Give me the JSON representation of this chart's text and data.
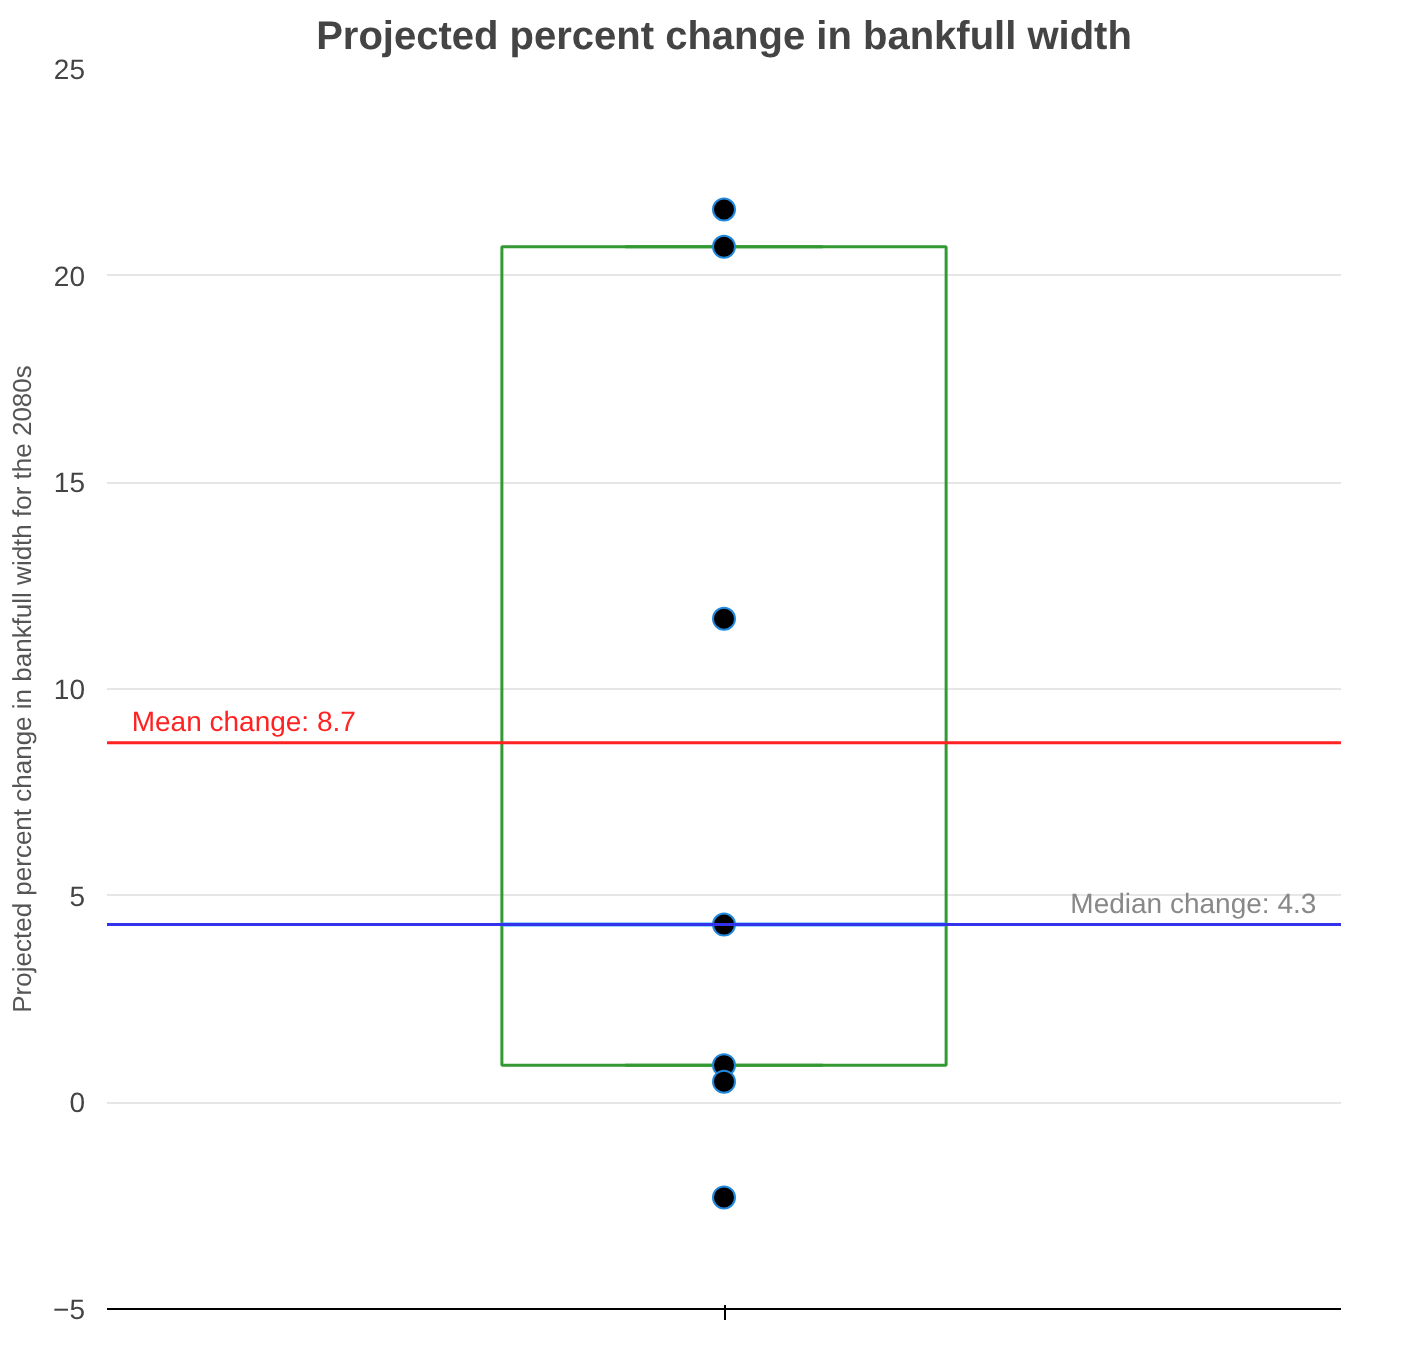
{
  "chart_data": {
    "type": "box",
    "title": "Projected percent change in bankfull width",
    "ylabel": "Projected percent change in bankfull width for the 2080s",
    "categories": [
      null
    ],
    "ylim": [
      -5,
      25
    ],
    "yticks": [
      -5,
      0,
      5,
      10,
      15,
      20,
      25
    ],
    "grid": "y",
    "marker": "circle",
    "series": [
      {
        "color": "#339933",
        "boxes": [
          {
            "low": 0.9,
            "q1": 0.9,
            "median": 4.3,
            "q3": 20.7,
            "high": 20.7
          }
        ]
      },
      {
        "type": "scatter",
        "color": "#000000",
        "x": [
          null,
          null,
          null,
          null,
          null,
          null,
          null
        ],
        "values": [
          21.6,
          20.7,
          11.7,
          4.3,
          0.9,
          0.5,
          -2.3
        ]
      }
    ],
    "ref_lines": [
      {
        "axis": "y",
        "value": 8.7,
        "label": "Mean change: 8.7",
        "color": "#ff2222"
      },
      {
        "axis": "y",
        "value": 4.3,
        "label": "Median change: 4.3",
        "color": "#3333ee"
      }
    ]
  }
}
